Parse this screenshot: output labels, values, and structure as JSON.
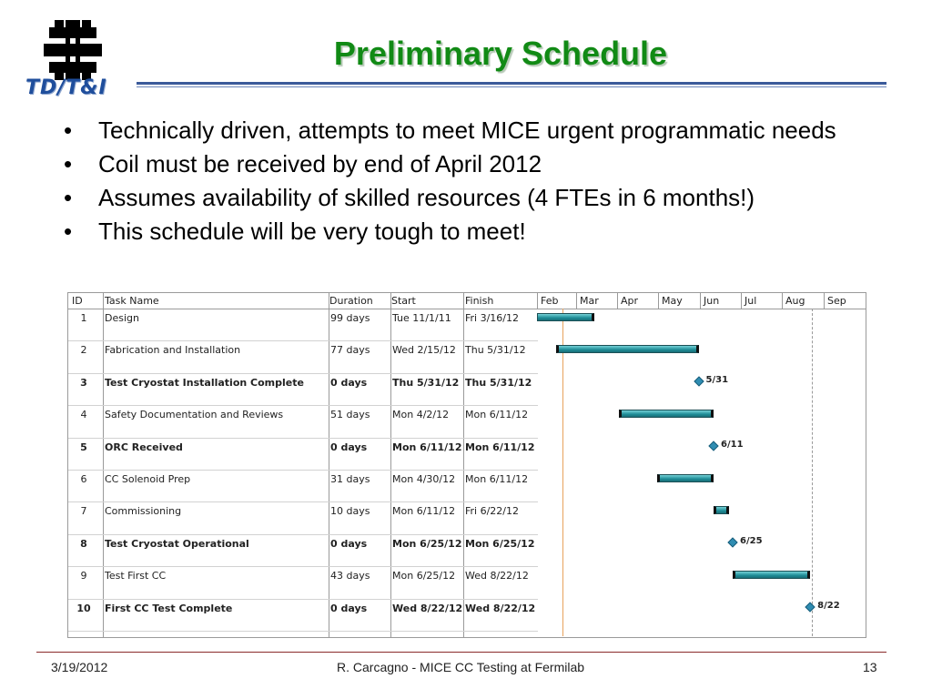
{
  "logo": {
    "text": "TD/T&I",
    "mark_color": "#000000",
    "text_color": "#1f4e9c"
  },
  "title": "Preliminary Schedule",
  "title_color": "#118a15",
  "bullets": [
    "Technically driven, attempts to meet MICE urgent programmatic needs",
    "Coil must be received by end of April 2012",
    "Assumes availability of skilled resources (4 FTEs in 6 months!)",
    "This schedule will be very tough to meet!"
  ],
  "gantt": {
    "headers": {
      "id": "ID",
      "task": "Task Name",
      "duration": "Duration",
      "start": "Start",
      "finish": "Finish"
    },
    "months": [
      "Feb",
      "Mar",
      "Apr",
      "May",
      "Jun",
      "Jul",
      "Aug",
      "Sep"
    ],
    "bar_color": "#1e8c96",
    "milestone_color": "#2f8db2",
    "tasks": [
      {
        "id": "1",
        "name": "Design",
        "duration": "99 days",
        "start": "Tue 11/1/11",
        "finish": "Fri 3/16/12",
        "milestone": false
      },
      {
        "id": "2",
        "name": "Fabrication and Installation",
        "duration": "77 days",
        "start": "Wed 2/15/12",
        "finish": "Thu 5/31/12",
        "milestone": false
      },
      {
        "id": "3",
        "name": "Test Cryostat Installation Complete",
        "duration": "0 days",
        "start": "Thu 5/31/12",
        "finish": "Thu 5/31/12",
        "milestone": true,
        "label": "5/31"
      },
      {
        "id": "4",
        "name": "Safety Documentation and Reviews",
        "duration": "51 days",
        "start": "Mon 4/2/12",
        "finish": "Mon 6/11/12",
        "milestone": false
      },
      {
        "id": "5",
        "name": "ORC Received",
        "duration": "0 days",
        "start": "Mon 6/11/12",
        "finish": "Mon 6/11/12",
        "milestone": true,
        "label": "6/11"
      },
      {
        "id": "6",
        "name": "CC Solenoid Prep",
        "duration": "31 days",
        "start": "Mon 4/30/12",
        "finish": "Mon 6/11/12",
        "milestone": false
      },
      {
        "id": "7",
        "name": "Commissioning",
        "duration": "10 days",
        "start": "Mon 6/11/12",
        "finish": "Fri 6/22/12",
        "milestone": false
      },
      {
        "id": "8",
        "name": "Test Cryostat Operational",
        "duration": "0 days",
        "start": "Mon 6/25/12",
        "finish": "Mon 6/25/12",
        "milestone": true,
        "label": "6/25"
      },
      {
        "id": "9",
        "name": "Test First CC",
        "duration": "43 days",
        "start": "Mon 6/25/12",
        "finish": "Wed 8/22/12",
        "milestone": false
      },
      {
        "id": "10",
        "name": "First CC Test Complete",
        "duration": "0 days",
        "start": "Wed 8/22/12",
        "finish": "Wed 8/22/12",
        "milestone": true,
        "label": "8/22"
      }
    ]
  },
  "footer": {
    "date": "3/19/2012",
    "center": "R. Carcagno - MICE CC Testing at Fermilab",
    "page": "13"
  }
}
